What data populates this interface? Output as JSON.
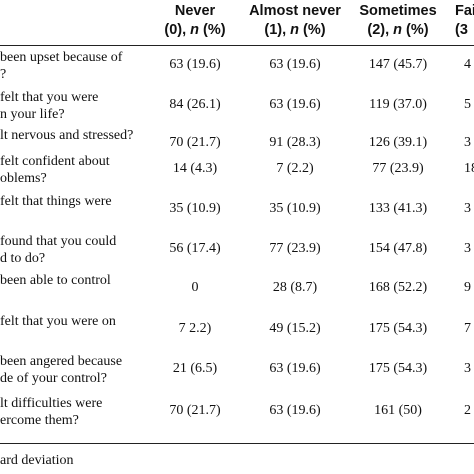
{
  "columns": [
    {
      "name": "Never",
      "code": "(0), ",
      "n": "n",
      "pct": " (%)"
    },
    {
      "name": "Almost never",
      "code": "(1), ",
      "n": "n",
      "pct": " (%)"
    },
    {
      "name": "Sometimes",
      "code": "(2), ",
      "n": "n",
      "pct": " (%)"
    },
    {
      "name": "Fai",
      "code": "(3",
      "n": "",
      "pct": ""
    }
  ],
  "rows": [
    {
      "q1": "been upset because of",
      "q2": "?",
      "v": [
        "63 (19.6)",
        "63 (19.6)",
        "147 (45.7)",
        "4"
      ]
    },
    {
      "q1": "felt that you were",
      "q2": "n your life?",
      "v": [
        "84 (26.1)",
        "63 (19.6)",
        "119 (37.0)",
        "5"
      ]
    },
    {
      "q1": "lt nervous and stressed?",
      "q2": "",
      "v": [
        "70 (21.7)",
        "91 (28.3)",
        "126 (39.1)",
        "3"
      ]
    },
    {
      "q1": "felt confident about",
      "q2": "oblems?",
      "v": [
        "14 (4.3)",
        "7 (2.2)",
        "77 (23.9)",
        "18"
      ]
    },
    {
      "q1": "felt that things were",
      "q2": "",
      "v": [
        "35 (10.9)",
        "35 (10.9)",
        "133 (41.3)",
        "3"
      ]
    },
    {
      "q1": "found that you could",
      "q2": "d to do?",
      "v": [
        "56 (17.4)",
        "77 (23.9)",
        "154 (47.8)",
        "3"
      ]
    },
    {
      "q1": "been able to control",
      "q2": "",
      "v": [
        "0",
        "28 (8.7)",
        "168 (52.2)",
        "9"
      ]
    },
    {
      "q1": "felt that you were on",
      "q2": "",
      "v": [
        "7 2.2)",
        "49 (15.2)",
        "175 (54.3)",
        "7"
      ]
    },
    {
      "q1": "been angered because",
      "q2": "de of your control?",
      "v": [
        "21 (6.5)",
        "63 (19.6)",
        "175 (54.3)",
        "3"
      ]
    },
    {
      "q1": "lt difficulties were",
      "q2": "ercome them?",
      "v": [
        "70 (21.7)",
        "63 (19.6)",
        "161 (50)",
        "2"
      ]
    }
  ],
  "footnote": "ard deviation"
}
